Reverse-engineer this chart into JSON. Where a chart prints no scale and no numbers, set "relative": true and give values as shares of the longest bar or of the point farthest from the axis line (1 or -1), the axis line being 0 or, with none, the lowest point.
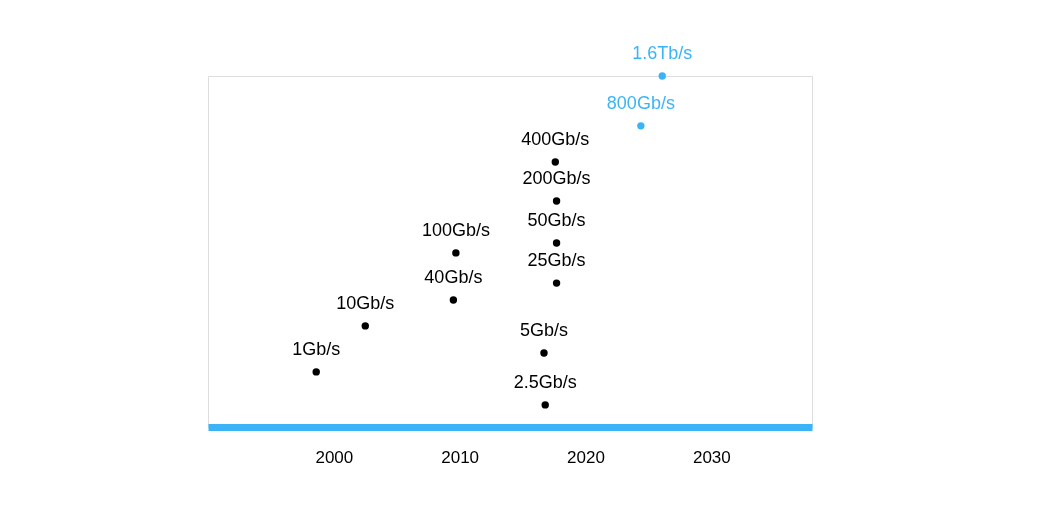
{
  "chart_data": {
    "type": "scatter",
    "relative": true,
    "xlim": [
      1990,
      2038
    ],
    "xticks": [
      2000,
      2010,
      2020,
      2030
    ],
    "grid": false,
    "marker": "circle",
    "series": [
      {
        "color": "#000000",
        "x": [
          1998.6,
          2002.5,
          2009.5,
          2009.7,
          2016.8,
          2016.7,
          2017.7,
          2017.7,
          2017.7,
          2017.6
        ],
        "values": [
          0.157,
          0.288,
          0.362,
          0.496,
          0.063,
          0.211,
          0.41,
          0.524,
          0.644,
          0.755
        ]
      },
      {
        "color": "#3bb4f7",
        "x": [
          2024.4,
          2026.1
        ],
        "values": [
          0.858,
          1
        ]
      }
    ],
    "annotations": [
      {
        "text": "1Gb/s",
        "x": 1998.6,
        "y": 0.157
      },
      {
        "text": "10Gb/s",
        "x": 2002.5,
        "y": 0.288
      },
      {
        "text": "40Gb/s",
        "x": 2009.5,
        "y": 0.362
      },
      {
        "text": "100Gb/s",
        "x": 2009.7,
        "y": 0.496
      },
      {
        "text": "2.5Gb/s",
        "x": 2016.8,
        "y": 0.063
      },
      {
        "text": "5Gb/s",
        "x": 2016.7,
        "y": 0.211
      },
      {
        "text": "25Gb/s",
        "x": 2017.7,
        "y": 0.41
      },
      {
        "text": "50Gb/s",
        "x": 2017.7,
        "y": 0.524
      },
      {
        "text": "200Gb/s",
        "x": 2017.7,
        "y": 0.644
      },
      {
        "text": "400Gb/s",
        "x": 2017.6,
        "y": 0.755
      },
      {
        "text": "800Gb/s",
        "x": 2024.4,
        "y": 0.858
      },
      {
        "text": "1.6Tb/s",
        "x": 2026.1,
        "y": 1
      }
    ]
  }
}
